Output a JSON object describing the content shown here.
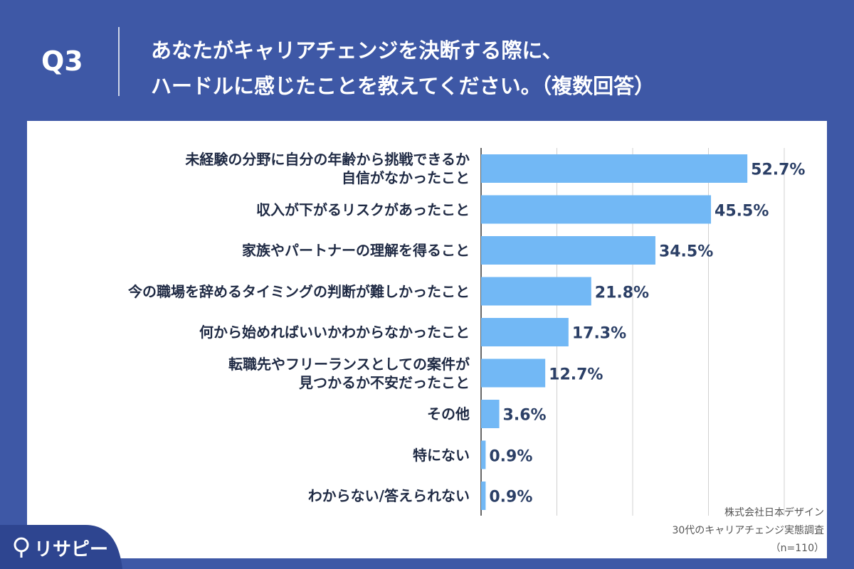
{
  "chart_data": {
    "type": "bar",
    "orientation": "horizontal",
    "question_number": "Q3",
    "title": "あなたがキャリアチェンジを決断する際に、\nハードルに感じたことを教えてください。（複数回答）",
    "categories": [
      "未経験の分野に自分の年齢から挑戦できるか\n自信がなかったこと",
      "収入が下がるリスクがあったこと",
      "家族やパートナーの理解を得ること",
      "今の職場を辞めるタイミングの判断が難しかったこと",
      "何から始めればいいかわからなかったこと",
      "転職先やフリーランスとしての案件が\n見つかるか不安だったこと",
      "その他",
      "特にない",
      "わからない/答えられない"
    ],
    "values": [
      52.7,
      45.5,
      34.5,
      21.8,
      17.3,
      12.7,
      3.6,
      0.9,
      0.9
    ],
    "value_labels": [
      "52.7%",
      "45.5%",
      "34.5%",
      "21.8%",
      "17.3%",
      "12.7%",
      "3.6%",
      "0.9%",
      "0.9%"
    ],
    "color": "#72b8f5",
    "xlim": [
      0,
      60
    ],
    "xticks": [
      0,
      15,
      30,
      45,
      60
    ],
    "grid": true,
    "source": [
      "株式会社日本デザイン",
      "30代のキャリアチェンジ実態調査",
      "（n=110）"
    ],
    "logo": "リサピー"
  }
}
